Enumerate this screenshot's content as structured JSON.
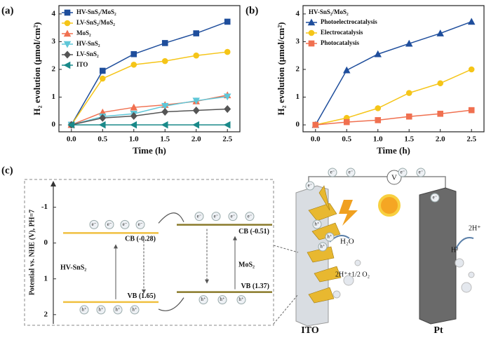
{
  "chart_data": [
    {
      "type": "line",
      "label": "(a)",
      "x_label": "Time (h)",
      "y_label": "H₂ evolution (μmol/cm²)",
      "x": [
        0,
        0.5,
        1,
        1.5,
        2,
        2.5
      ],
      "xlim": [
        -0.2,
        2.7
      ],
      "ylim": [
        -0.25,
        4.3
      ],
      "xticks": [
        {
          "value": 0,
          "label": "0.0"
        },
        0.5,
        {
          "value": 1,
          "label": "1.0"
        },
        1.5,
        {
          "value": 2,
          "label": "2.0"
        },
        2.5
      ],
      "yticks": [
        0,
        1,
        2,
        3,
        4
      ],
      "series": [
        {
          "name": "HV-SnS₂/MoS₂",
          "color": "#1f4e9c",
          "marker": "square",
          "values": [
            0,
            1.95,
            2.55,
            2.95,
            3.3,
            3.72
          ]
        },
        {
          "name": "LV-SnS₂/MoS₂",
          "color": "#f5c518",
          "marker": "circle",
          "values": [
            0,
            1.67,
            2.17,
            2.3,
            2.5,
            2.63
          ]
        },
        {
          "name": "MoS₂",
          "color": "#f07050",
          "marker": "triangle-up",
          "values": [
            0,
            0.45,
            0.63,
            0.72,
            0.85,
            1.07
          ]
        },
        {
          "name": "HV-SnS₂",
          "color": "#5fc7d8",
          "marker": "triangle-down",
          "values": [
            0,
            0.3,
            0.4,
            0.68,
            0.87,
            1.02
          ]
        },
        {
          "name": "LV-SnS₂",
          "color": "#555555",
          "marker": "diamond",
          "values": [
            0,
            0.25,
            0.32,
            0.47,
            0.52,
            0.57
          ]
        },
        {
          "name": "ITO",
          "color": "#1a8a8a",
          "marker": "triangle-left",
          "values": [
            0,
            0,
            0,
            0,
            0,
            0
          ]
        }
      ]
    },
    {
      "type": "line",
      "label": "(b)",
      "x_label": "Time (h)",
      "y_label": "H₂ evolution (μmol/cm²)",
      "legend_title": "HV-SnS₂/MoS₂",
      "x": [
        0,
        0.5,
        1,
        1.5,
        2,
        2.5
      ],
      "xlim": [
        -0.2,
        2.7
      ],
      "ylim": [
        -0.25,
        4.3
      ],
      "xticks": [
        {
          "value": 0,
          "label": "0.0"
        },
        0.5,
        {
          "value": 1,
          "label": "1.0"
        },
        1.5,
        {
          "value": 2,
          "label": "2.0"
        },
        2.5
      ],
      "yticks": [
        0,
        1,
        2,
        3,
        4
      ],
      "series": [
        {
          "name": "Photoelectrocatalysis",
          "color": "#1f4e9c",
          "marker": "triangle-up",
          "values": [
            0,
            1.97,
            2.55,
            2.93,
            3.3,
            3.72
          ]
        },
        {
          "name": "Electrocatalysis",
          "color": "#f5c518",
          "marker": "circle",
          "values": [
            0,
            0.25,
            0.6,
            1.15,
            1.5,
            2.0
          ]
        },
        {
          "name": "Photocatalysis",
          "color": "#f07050",
          "marker": "square",
          "values": [
            0,
            0.1,
            0.17,
            0.3,
            0.4,
            0.53
          ]
        }
      ]
    }
  ],
  "diagram": {
    "label": "(c)",
    "energy_axis": {
      "title": "Potential vs. NHE (V), PH=7",
      "ylim": [
        -1.6,
        2.2
      ],
      "ticks": [
        -1,
        0,
        1,
        2
      ]
    },
    "materials": [
      {
        "name": "HV-SnS₂",
        "color": "#f0c040",
        "cb": -0.28,
        "cb_label": "CB (-0.28)",
        "vb": 1.65,
        "vb_label": "VB (1.65)"
      },
      {
        "name": "MoS₂",
        "color": "#8a7a2a",
        "cb": -0.51,
        "cb_label": "CB (-0.51)",
        "vb": 1.37,
        "vb_label": "VB (1.37)"
      }
    ],
    "electron": "e⁻",
    "hole": "h⁺",
    "device": {
      "anode": "ITO",
      "cathode": "Pt",
      "meter": "V",
      "water": "H₂O",
      "oxidation": "2H⁺+1/2 O₂",
      "protons": "2H⁺",
      "hydrogen": "H²"
    }
  }
}
